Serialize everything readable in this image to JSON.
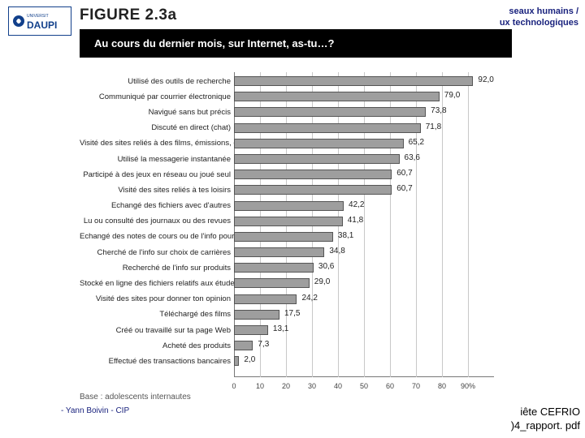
{
  "header": {
    "line1": "seaux humains /",
    "line2": "ux technologiques"
  },
  "logo": {
    "text": "DAUPI",
    "prefix": "UNIVERSIT"
  },
  "figure": {
    "label": "FIGURE 2.3a",
    "question": "Au cours du dernier mois, sur Internet, as-tu…?",
    "base": "Base : adolescents internautes",
    "type": "bar",
    "axis": {
      "min": 0,
      "max": 100,
      "tick_step": 10,
      "max_tick_label": "90%",
      "grid_color": "#c8c8c8",
      "axis_color": "#777777"
    },
    "bar_color": "#9e9e9e",
    "bar_border": "#555555",
    "rows": [
      {
        "label": "Utilisé des outils de recherche",
        "value": 92.0,
        "vtxt": "92,0"
      },
      {
        "label": "Communiqué par courrier électronique",
        "value": 79.0,
        "vtxt": "79,0"
      },
      {
        "label": "Navigué sans but précis",
        "value": 73.8,
        "vtxt": "73,8"
      },
      {
        "label": "Discuté en direct (chat)",
        "value": 71.8,
        "vtxt": "71,8"
      },
      {
        "label": "Visité des sites reliés à des films, émissions, etc.",
        "value": 65.2,
        "vtxt": "65,2"
      },
      {
        "label": "Utilisé la messagerie instantanée",
        "value": 63.6,
        "vtxt": "63,6"
      },
      {
        "label": "Participé à des jeux en réseau ou joué seul",
        "value": 60.7,
        "vtxt": "60,7"
      },
      {
        "label": "Visité des sites reliés à tes loisirs",
        "value": 60.7,
        "vtxt": "60,7"
      },
      {
        "label": "Échangé des fichiers avec d'autres",
        "value": 42.2,
        "vtxt": "42,2"
      },
      {
        "label": "Lu ou consulté des journaux ou des revues",
        "value": 41.8,
        "vtxt": "41,8"
      },
      {
        "label": "Échangé des notes de cours ou de l'info pour tes devoirs",
        "value": 38.1,
        "vtxt": "38,1"
      },
      {
        "label": "Cherché de l'info sur choix de carrières",
        "value": 34.8,
        "vtxt": "34,8"
      },
      {
        "label": "Recherché de l'info sur produits",
        "value": 30.6,
        "vtxt": "30,6"
      },
      {
        "label": "Stocké en ligne des fichiers relatifs aux études",
        "value": 29.0,
        "vtxt": "29,0"
      },
      {
        "label": "Visité des sites pour donner ton opinion",
        "value": 24.2,
        "vtxt": "24,2"
      },
      {
        "label": "Téléchargé des films",
        "value": 17.5,
        "vtxt": "17,5"
      },
      {
        "label": "Créé ou travaillé sur ta page Web",
        "value": 13.1,
        "vtxt": "13,1"
      },
      {
        "label": "Acheté des produits",
        "value": 7.3,
        "vtxt": "7,3"
      },
      {
        "label": "Effectué des transactions bancaires",
        "value": 2.0,
        "vtxt": "2,0"
      }
    ]
  },
  "footer": {
    "left": "- Yann Boivin - CIP",
    "right1": "iête CEFRIO",
    "right2": ")4_rapport. pdf"
  }
}
